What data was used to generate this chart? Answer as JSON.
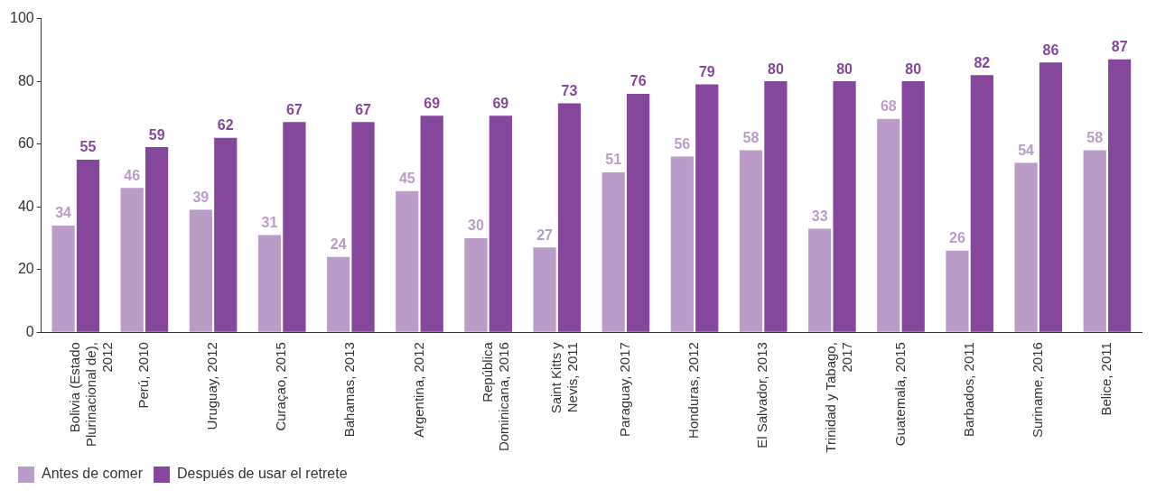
{
  "chart_data": {
    "type": "bar",
    "categories": [
      "Bolivia (Estado Plurinacional de), 2012",
      "Perú, 2010",
      "Uruguay, 2012",
      "Curaçao, 2015",
      "Bahamas, 2013",
      "Argentina, 2012",
      "República Dominicana, 2016",
      "Saint Kitts y Nevis, 2011",
      "Paraguay, 2017",
      "Honduras, 2012",
      "El Salvador, 2013",
      "Trinidad y Tabago, 2017",
      "Guatemala, 2015",
      "Barbados, 2011",
      "Suriname, 2016",
      "Belice, 2011"
    ],
    "series": [
      {
        "name": "Antes de comer",
        "color": "#bb9cc9",
        "values": [
          34,
          46,
          39,
          31,
          24,
          45,
          30,
          27,
          51,
          56,
          58,
          33,
          68,
          26,
          54,
          58
        ]
      },
      {
        "name": "Después de usar el retrete",
        "color": "#84479b",
        "values": [
          55,
          59,
          62,
          67,
          67,
          69,
          69,
          73,
          76,
          79,
          80,
          80,
          80,
          82,
          86,
          87
        ]
      }
    ],
    "ylim": [
      0,
      100
    ],
    "yticks": [
      0,
      20,
      40,
      60,
      80,
      100
    ],
    "grid": false,
    "legend": "bottom left",
    "data_labels": true
  }
}
